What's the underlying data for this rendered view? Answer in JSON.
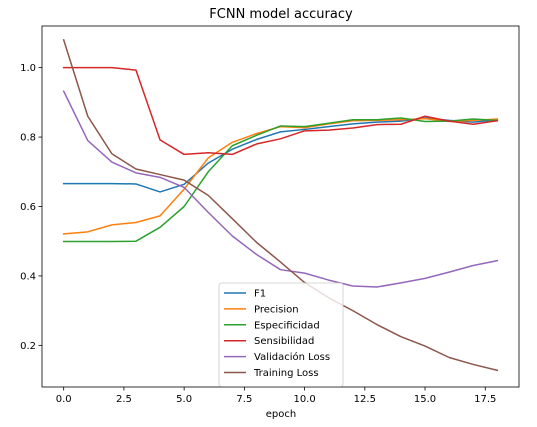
{
  "chart_data": {
    "type": "line",
    "title": "FCNN model accuracy",
    "xlabel": "epoch",
    "ylabel": "",
    "xlim": [
      -0.9,
      18.9
    ],
    "ylim": [
      0.08,
      1.12
    ],
    "xticks": [
      0.0,
      2.5,
      5.0,
      7.5,
      10.0,
      12.5,
      15.0,
      17.5
    ],
    "xtick_labels": [
      "0.0",
      "2.5",
      "5.0",
      "7.5",
      "10.0",
      "12.5",
      "15.0",
      "17.5"
    ],
    "yticks": [
      0.2,
      0.4,
      0.6,
      0.8,
      1.0
    ],
    "ytick_labels": [
      "0.2",
      "0.4",
      "0.6",
      "0.8",
      "1.0"
    ],
    "grid": false,
    "legend_position": "bottom-center",
    "x": [
      0,
      1,
      2,
      3,
      4,
      5,
      6,
      7,
      8,
      9,
      10,
      11,
      12,
      13,
      14,
      15,
      16,
      17,
      18
    ],
    "series": [
      {
        "name": "F1",
        "color": "#1f77b4",
        "values": [
          0.666,
          0.666,
          0.666,
          0.665,
          0.642,
          0.664,
          0.725,
          0.765,
          0.793,
          0.815,
          0.822,
          0.83,
          0.838,
          0.843,
          0.846,
          0.855,
          0.848,
          0.843,
          0.85
        ]
      },
      {
        "name": "Precision",
        "color": "#ff7f0e",
        "values": [
          0.521,
          0.527,
          0.547,
          0.554,
          0.573,
          0.65,
          0.74,
          0.785,
          0.81,
          0.83,
          0.827,
          0.838,
          0.847,
          0.848,
          0.85,
          0.853,
          0.845,
          0.848,
          0.852
        ]
      },
      {
        "name": "Especificidad",
        "color": "#2ca02c",
        "values": [
          0.499,
          0.499,
          0.499,
          0.5,
          0.54,
          0.6,
          0.7,
          0.775,
          0.805,
          0.832,
          0.83,
          0.84,
          0.85,
          0.85,
          0.855,
          0.845,
          0.846,
          0.852,
          0.848
        ]
      },
      {
        "name": "Sensibilidad",
        "color": "#d62728",
        "values": [
          1.0,
          1.0,
          1.0,
          0.993,
          0.792,
          0.75,
          0.755,
          0.75,
          0.78,
          0.795,
          0.818,
          0.82,
          0.826,
          0.836,
          0.837,
          0.86,
          0.846,
          0.837,
          0.847
        ]
      },
      {
        "name": "Validación Loss",
        "color": "#9467bd",
        "values": [
          0.932,
          0.79,
          0.728,
          0.697,
          0.684,
          0.655,
          0.583,
          0.515,
          0.462,
          0.418,
          0.408,
          0.388,
          0.371,
          0.368,
          0.38,
          0.393,
          0.411,
          0.43,
          0.444
        ]
      },
      {
        "name": "Training Loss",
        "color": "#8c564b",
        "values": [
          1.08,
          0.86,
          0.752,
          0.708,
          0.692,
          0.676,
          0.632,
          0.565,
          0.497,
          0.44,
          0.381,
          0.337,
          0.3,
          0.26,
          0.225,
          0.198,
          0.165,
          0.145,
          0.128
        ]
      }
    ]
  }
}
